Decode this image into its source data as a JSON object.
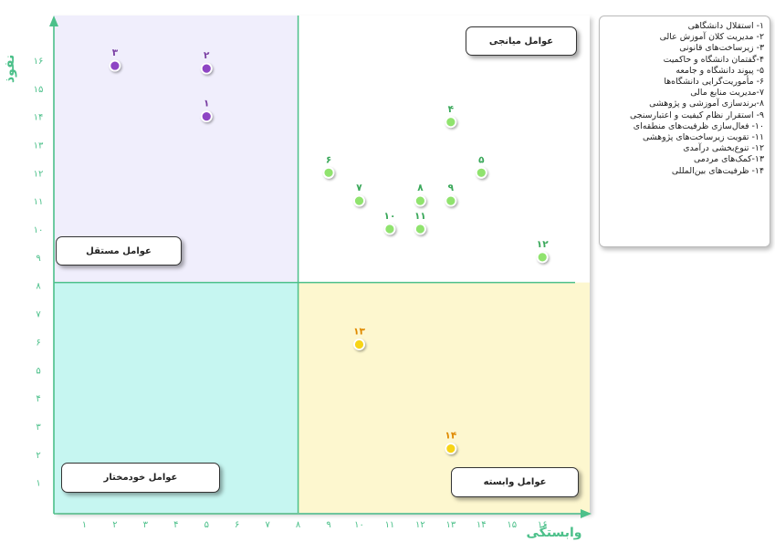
{
  "chart_data": {
    "type": "scatter",
    "xlabel": "وابستگی",
    "ylabel": "نفوذ",
    "xlim": [
      0,
      17
    ],
    "ylim": [
      0,
      17
    ],
    "x_ticks": [
      "۱",
      "۲",
      "۳",
      "۴",
      "۵",
      "۶",
      "۷",
      "۸",
      "۹",
      "۱۰",
      "۱۱",
      "۱۲",
      "۱۳",
      "۱۴",
      "۱۵",
      "۱۶"
    ],
    "y_ticks": [
      "۱",
      "۲",
      "۳",
      "۴",
      "۵",
      "۶",
      "۷",
      "۸",
      "۹",
      "۱۰",
      "۱۱",
      "۱۲",
      "۱۳",
      "۱۴",
      "۱۵",
      "۱۶"
    ],
    "quadrants": [
      {
        "label": "عوامل مستقل",
        "color": "#f0eefc"
      },
      {
        "label": "عوامل میانجی",
        "color": "#ffffff"
      },
      {
        "label": "عوامل خودمختار",
        "color": "#c6f6f1"
      },
      {
        "label": "عوامل وابسته",
        "color": "#fdf7cf"
      }
    ],
    "points": [
      {
        "label": "۱",
        "x": 5,
        "y": 14,
        "group": "independent"
      },
      {
        "label": "۲",
        "x": 5,
        "y": 15.7,
        "group": "independent"
      },
      {
        "label": "۳",
        "x": 2,
        "y": 15.8,
        "group": "independent"
      },
      {
        "label": "۴",
        "x": 13,
        "y": 13.8,
        "group": "linkage"
      },
      {
        "label": "۵",
        "x": 14,
        "y": 12,
        "group": "linkage"
      },
      {
        "label": "۶",
        "x": 9,
        "y": 12,
        "group": "linkage"
      },
      {
        "label": "۷",
        "x": 10,
        "y": 11,
        "group": "linkage"
      },
      {
        "label": "۸",
        "x": 12,
        "y": 11,
        "group": "linkage"
      },
      {
        "label": "۹",
        "x": 13,
        "y": 11,
        "group": "linkage"
      },
      {
        "label": "۱۰",
        "x": 11,
        "y": 10,
        "group": "linkage"
      },
      {
        "label": "۱۱",
        "x": 12,
        "y": 10,
        "group": "linkage"
      },
      {
        "label": "۱۲",
        "x": 16,
        "y": 9,
        "group": "linkage"
      },
      {
        "label": "۱۳",
        "x": 10,
        "y": 5.9,
        "group": "dependent"
      },
      {
        "label": "۱۴",
        "x": 13,
        "y": 2.2,
        "group": "dependent"
      }
    ],
    "colors": {
      "independent": "#8e44c4",
      "linkage": "#90e36e",
      "dependent": "#f7d417",
      "axis": "#4cc08a",
      "independent_label": "#7a3fa3",
      "linkage_label": "#3aa85a",
      "dependent_label": "#e08a00"
    }
  },
  "legend": {
    "items": [
      "۱- استقلال دانشگاهی",
      "۲- مدیریت کلان آموزش عالی",
      "۳- زیرساخت‌های قانونی",
      "۴-گفتمان دانشگاه و حاکمیت",
      "۵- پیوند دانشگاه و جامعه",
      "۶- مأموریت‌گرایی دانشگاه‌ها",
      "۷-مدیریت منابع مالی",
      "۸-برندسازی آموزشی و پژوهشی",
      "۹- استقرار نظام کیفیت و اعتبارسنجی",
      "۱۰- فعال‌سازی ظرفیت‌های منطقه‌ای",
      "۱۱- تقویت زیرساخت‌های پژوهشی",
      "۱۲- تنوع‌بخشی درآمدی",
      "۱۳-کمک‌های مردمی",
      "۱۴- ظرفیت‌های بین‌المللی"
    ]
  }
}
